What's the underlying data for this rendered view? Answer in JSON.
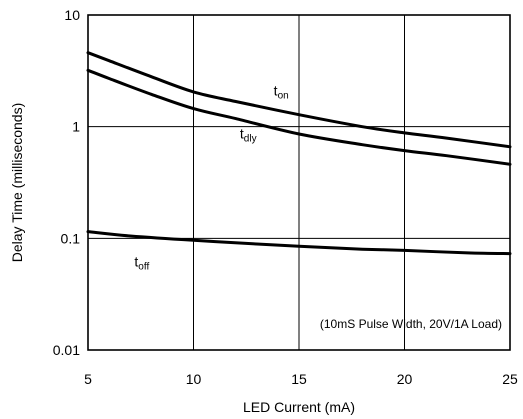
{
  "chart_data": {
    "type": "line",
    "title": "",
    "xlabel": "LED Current (mA)",
    "ylabel": "Delay Time (milliseconds)",
    "xlim": [
      5,
      25
    ],
    "ylim": [
      0.01,
      10
    ],
    "yscale": "log",
    "grid": true,
    "x_ticks": [
      "5",
      "10",
      "15",
      "20",
      "25"
    ],
    "y_ticks": [
      "10",
      "1",
      "0.1",
      "0.01"
    ],
    "annotation": "(10mS Pulse Width, 20V/1A Load)",
    "series": [
      {
        "name": "ton",
        "label_main": "t",
        "label_sub": "on",
        "x": [
          5,
          6,
          8,
          10,
          12,
          15,
          18,
          20,
          22,
          25
        ],
        "y": [
          4.6,
          3.9,
          2.8,
          2.05,
          1.68,
          1.28,
          1.0,
          0.88,
          0.79,
          0.66
        ]
      },
      {
        "name": "tdly",
        "label_main": "t",
        "label_sub": "dly",
        "x": [
          5,
          6,
          8,
          10,
          12,
          15,
          18,
          20,
          22,
          25
        ],
        "y": [
          3.2,
          2.7,
          1.95,
          1.45,
          1.18,
          0.86,
          0.69,
          0.61,
          0.55,
          0.46
        ]
      },
      {
        "name": "toff",
        "label_main": "t",
        "label_sub": "off",
        "x": [
          5,
          7,
          10,
          13,
          15,
          18,
          20,
          23,
          25
        ],
        "y": [
          0.115,
          0.105,
          0.096,
          0.089,
          0.085,
          0.08,
          0.078,
          0.074,
          0.073
        ]
      }
    ]
  }
}
